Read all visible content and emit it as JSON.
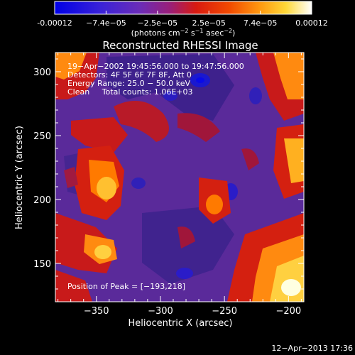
{
  "colorbar": {
    "tick_labels": [
      "-0.00012",
      "−7.4e−05",
      "−2.5e−05",
      "2.5e−05",
      "7.4e−05",
      "0.00012"
    ],
    "units": {
      "prefix": "(photons cm",
      "exp1": "−2",
      "mid1": " s",
      "exp2": "−1",
      "mid2": " asec",
      "exp3": "−2",
      "suffix": ")"
    },
    "range": [
      -0.00012,
      0.00012
    ],
    "colormap": "blue-purple-red-orange-yellow-white"
  },
  "title": "Reconstructed RHESSI Image",
  "annotations": [
    "19−Apr−2002 19:45:56.000 to 19:47:56.000",
    "Detectors: 4F 5F 6F 7F 8F, Att 0",
    "Energy Range: 25.0 − 50.0 keV",
    "Clean     Total counts: 1.06E+03"
  ],
  "peak_label": "Position of Peak = [−193,218]",
  "axes": {
    "xlabel": "Heliocentric X (arcsec)",
    "ylabel": "Heliocentric Y (arcsec)",
    "xlim": [
      -382,
      -188
    ],
    "ylim": [
      120,
      315
    ],
    "xticks": [
      {
        "value": -350,
        "label": "−350"
      },
      {
        "value": -300,
        "label": "−300"
      },
      {
        "value": -250,
        "label": "−250"
      },
      {
        "value": -200,
        "label": "−200"
      }
    ],
    "yticks": [
      {
        "value": 150,
        "label": "150"
      },
      {
        "value": 200,
        "label": "200"
      },
      {
        "value": 250,
        "label": "250"
      },
      {
        "value": 300,
        "label": "300"
      }
    ]
  },
  "timestamp": "12−Apr−2013 17:36",
  "colors": {
    "background": "#000000",
    "text": "#ffffff"
  }
}
